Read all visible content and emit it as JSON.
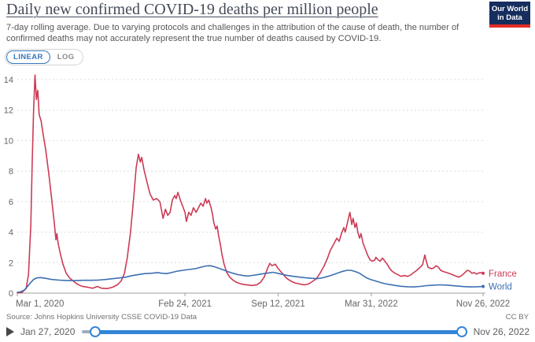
{
  "header": {
    "title": "Daily new confirmed COVID-19 deaths per million people",
    "subtitle": "7-day rolling average. Due to varying protocols and challenges in the attribution of the cause of death, the number of confirmed deaths may not accurately represent the true number of deaths caused by COVID-19.",
    "logo": {
      "line1": "Our World",
      "line2": "in Data"
    }
  },
  "controls": {
    "linear_label": "LINEAR",
    "log_label": "LOG",
    "selected": "LINEAR"
  },
  "chart_data": {
    "type": "line",
    "title": "Daily new confirmed COVID-19 deaths per million people",
    "xlabel": "",
    "ylabel": "",
    "ylim": [
      0,
      14
    ],
    "yticks": [
      0,
      2,
      4,
      6,
      8,
      10,
      12,
      14
    ],
    "grid": "dashed-horizontal",
    "legend_position": "right-of-line-ends",
    "x_range": [
      "Mar 1, 2020",
      "Nov 26, 2022"
    ],
    "x_ticks": [
      {
        "label": "Mar 1, 2020",
        "f": 0.0
      },
      {
        "label": "Feb 24, 2021",
        "f": 0.36
      },
      {
        "label": "Sep 12, 2021",
        "f": 0.56
      },
      {
        "label": "Mar 31, 2022",
        "f": 0.76
      },
      {
        "label": "Nov 26, 2022",
        "f": 1.0
      }
    ],
    "series": [
      {
        "name": "France",
        "color": "#cc3b55",
        "points": [
          [
            0.0,
            0.02
          ],
          [
            0.01,
            0.04
          ],
          [
            0.019,
            0.3
          ],
          [
            0.024,
            1.2
          ],
          [
            0.029,
            4.5
          ],
          [
            0.032,
            8.5
          ],
          [
            0.035,
            12.0
          ],
          [
            0.038,
            14.3
          ],
          [
            0.041,
            12.7
          ],
          [
            0.044,
            13.3
          ],
          [
            0.047,
            11.7
          ],
          [
            0.051,
            11.3
          ],
          [
            0.056,
            10.3
          ],
          [
            0.061,
            9.4
          ],
          [
            0.068,
            7.7
          ],
          [
            0.074,
            6.1
          ],
          [
            0.079,
            4.7
          ],
          [
            0.083,
            3.5
          ],
          [
            0.085,
            3.9
          ],
          [
            0.088,
            3.2
          ],
          [
            0.093,
            2.5
          ],
          [
            0.098,
            1.9
          ],
          [
            0.105,
            1.3
          ],
          [
            0.112,
            1.0
          ],
          [
            0.12,
            0.8
          ],
          [
            0.128,
            0.6
          ],
          [
            0.139,
            0.45
          ],
          [
            0.152,
            0.38
          ],
          [
            0.162,
            0.32
          ],
          [
            0.172,
            0.44
          ],
          [
            0.181,
            0.32
          ],
          [
            0.193,
            0.3
          ],
          [
            0.204,
            0.38
          ],
          [
            0.215,
            0.55
          ],
          [
            0.223,
            0.8
          ],
          [
            0.23,
            1.3
          ],
          [
            0.236,
            2.3
          ],
          [
            0.243,
            4.0
          ],
          [
            0.25,
            6.3
          ],
          [
            0.255,
            8.2
          ],
          [
            0.26,
            9.1
          ],
          [
            0.264,
            8.6
          ],
          [
            0.267,
            8.9
          ],
          [
            0.272,
            8.1
          ],
          [
            0.279,
            7.2
          ],
          [
            0.285,
            6.5
          ],
          [
            0.292,
            6.1
          ],
          [
            0.299,
            6.2
          ],
          [
            0.306,
            6.0
          ],
          [
            0.313,
            4.9
          ],
          [
            0.318,
            5.5
          ],
          [
            0.323,
            5.1
          ],
          [
            0.328,
            5.3
          ],
          [
            0.333,
            6.1
          ],
          [
            0.338,
            6.4
          ],
          [
            0.341,
            6.2
          ],
          [
            0.345,
            6.6
          ],
          [
            0.35,
            6.1
          ],
          [
            0.355,
            5.7
          ],
          [
            0.36,
            5.3
          ],
          [
            0.363,
            4.7
          ],
          [
            0.368,
            5.3
          ],
          [
            0.373,
            5.1
          ],
          [
            0.378,
            5.6
          ],
          [
            0.384,
            5.3
          ],
          [
            0.389,
            5.6
          ],
          [
            0.394,
            5.9
          ],
          [
            0.399,
            5.7
          ],
          [
            0.404,
            6.2
          ],
          [
            0.407,
            5.9
          ],
          [
            0.411,
            6.1
          ],
          [
            0.416,
            5.6
          ],
          [
            0.419,
            5.2
          ],
          [
            0.422,
            4.6
          ],
          [
            0.426,
            4.2
          ],
          [
            0.429,
            4.4
          ],
          [
            0.432,
            3.8
          ],
          [
            0.436,
            3.2
          ],
          [
            0.439,
            2.6
          ],
          [
            0.444,
            1.9
          ],
          [
            0.449,
            1.4
          ],
          [
            0.456,
            1.05
          ],
          [
            0.463,
            0.85
          ],
          [
            0.471,
            0.7
          ],
          [
            0.481,
            0.6
          ],
          [
            0.492,
            0.55
          ],
          [
            0.503,
            0.5
          ],
          [
            0.514,
            0.55
          ],
          [
            0.522,
            0.7
          ],
          [
            0.53,
            1.05
          ],
          [
            0.537,
            1.6
          ],
          [
            0.542,
            1.95
          ],
          [
            0.547,
            1.8
          ],
          [
            0.554,
            1.9
          ],
          [
            0.559,
            1.65
          ],
          [
            0.566,
            1.4
          ],
          [
            0.573,
            1.15
          ],
          [
            0.579,
            0.95
          ],
          [
            0.588,
            0.78
          ],
          [
            0.596,
            0.67
          ],
          [
            0.606,
            0.6
          ],
          [
            0.617,
            0.55
          ],
          [
            0.625,
            0.6
          ],
          [
            0.633,
            0.75
          ],
          [
            0.642,
            0.95
          ],
          [
            0.65,
            1.3
          ],
          [
            0.659,
            1.8
          ],
          [
            0.666,
            2.3
          ],
          [
            0.672,
            2.8
          ],
          [
            0.679,
            3.2
          ],
          [
            0.686,
            3.6
          ],
          [
            0.691,
            3.4
          ],
          [
            0.696,
            3.9
          ],
          [
            0.701,
            4.3
          ],
          [
            0.704,
            4.0
          ],
          [
            0.708,
            4.5
          ],
          [
            0.711,
            4.9
          ],
          [
            0.714,
            5.3
          ],
          [
            0.718,
            4.5
          ],
          [
            0.721,
            4.9
          ],
          [
            0.725,
            4.3
          ],
          [
            0.728,
            4.6
          ],
          [
            0.731,
            4.0
          ],
          [
            0.735,
            3.6
          ],
          [
            0.738,
            3.9
          ],
          [
            0.742,
            3.3
          ],
          [
            0.747,
            2.9
          ],
          [
            0.752,
            2.5
          ],
          [
            0.757,
            2.2
          ],
          [
            0.762,
            2.1
          ],
          [
            0.767,
            2.15
          ],
          [
            0.77,
            2.35
          ],
          [
            0.774,
            2.2
          ],
          [
            0.779,
            2.1
          ],
          [
            0.784,
            2.3
          ],
          [
            0.789,
            2.1
          ],
          [
            0.794,
            1.9
          ],
          [
            0.799,
            1.65
          ],
          [
            0.804,
            1.45
          ],
          [
            0.811,
            1.3
          ],
          [
            0.818,
            1.2
          ],
          [
            0.824,
            1.1
          ],
          [
            0.831,
            1.15
          ],
          [
            0.838,
            1.1
          ],
          [
            0.845,
            1.2
          ],
          [
            0.851,
            1.35
          ],
          [
            0.858,
            1.5
          ],
          [
            0.865,
            1.7
          ],
          [
            0.87,
            1.85
          ],
          [
            0.875,
            2.5
          ],
          [
            0.878,
            2.1
          ],
          [
            0.882,
            1.7
          ],
          [
            0.889,
            1.6
          ],
          [
            0.894,
            1.65
          ],
          [
            0.899,
            1.8
          ],
          [
            0.904,
            1.7
          ],
          [
            0.909,
            1.5
          ],
          [
            0.916,
            1.4
          ],
          [
            0.922,
            1.35
          ],
          [
            0.931,
            1.25
          ],
          [
            0.939,
            1.15
          ],
          [
            0.948,
            1.05
          ],
          [
            0.954,
            1.15
          ],
          [
            0.961,
            1.35
          ],
          [
            0.966,
            1.5
          ],
          [
            0.971,
            1.45
          ],
          [
            0.976,
            1.3
          ],
          [
            0.981,
            1.35
          ],
          [
            0.986,
            1.25
          ],
          [
            0.993,
            1.35
          ],
          [
            1.0,
            1.3
          ]
        ]
      },
      {
        "name": "World",
        "color": "#3d6fb3",
        "points": [
          [
            0.0,
            0.05
          ],
          [
            0.008,
            0.1
          ],
          [
            0.015,
            0.2
          ],
          [
            0.022,
            0.45
          ],
          [
            0.029,
            0.7
          ],
          [
            0.035,
            0.9
          ],
          [
            0.042,
            1.0
          ],
          [
            0.051,
            1.02
          ],
          [
            0.061,
            0.97
          ],
          [
            0.073,
            0.9
          ],
          [
            0.09,
            0.85
          ],
          [
            0.106,
            0.83
          ],
          [
            0.123,
            0.82
          ],
          [
            0.14,
            0.84
          ],
          [
            0.157,
            0.84
          ],
          [
            0.174,
            0.86
          ],
          [
            0.191,
            0.9
          ],
          [
            0.208,
            0.96
          ],
          [
            0.221,
            1.0
          ],
          [
            0.233,
            1.05
          ],
          [
            0.247,
            1.15
          ],
          [
            0.26,
            1.22
          ],
          [
            0.274,
            1.28
          ],
          [
            0.287,
            1.3
          ],
          [
            0.301,
            1.35
          ],
          [
            0.311,
            1.3
          ],
          [
            0.321,
            1.28
          ],
          [
            0.331,
            1.35
          ],
          [
            0.345,
            1.45
          ],
          [
            0.356,
            1.5
          ],
          [
            0.368,
            1.55
          ],
          [
            0.382,
            1.6
          ],
          [
            0.394,
            1.7
          ],
          [
            0.405,
            1.78
          ],
          [
            0.414,
            1.8
          ],
          [
            0.422,
            1.74
          ],
          [
            0.432,
            1.64
          ],
          [
            0.443,
            1.52
          ],
          [
            0.453,
            1.4
          ],
          [
            0.463,
            1.3
          ],
          [
            0.473,
            1.22
          ],
          [
            0.485,
            1.15
          ],
          [
            0.495,
            1.12
          ],
          [
            0.505,
            1.16
          ],
          [
            0.517,
            1.22
          ],
          [
            0.527,
            1.27
          ],
          [
            0.539,
            1.32
          ],
          [
            0.549,
            1.37
          ],
          [
            0.559,
            1.3
          ],
          [
            0.569,
            1.23
          ],
          [
            0.581,
            1.15
          ],
          [
            0.593,
            1.1
          ],
          [
            0.606,
            1.05
          ],
          [
            0.62,
            1.0
          ],
          [
            0.632,
            0.97
          ],
          [
            0.644,
            0.95
          ],
          [
            0.655,
            1.0
          ],
          [
            0.667,
            1.1
          ],
          [
            0.679,
            1.22
          ],
          [
            0.689,
            1.33
          ],
          [
            0.699,
            1.43
          ],
          [
            0.708,
            1.5
          ],
          [
            0.716,
            1.5
          ],
          [
            0.725,
            1.42
          ],
          [
            0.735,
            1.3
          ],
          [
            0.742,
            1.15
          ],
          [
            0.75,
            1.0
          ],
          [
            0.758,
            0.9
          ],
          [
            0.769,
            0.8
          ],
          [
            0.779,
            0.7
          ],
          [
            0.789,
            0.62
          ],
          [
            0.801,
            0.56
          ],
          [
            0.812,
            0.5
          ],
          [
            0.824,
            0.45
          ],
          [
            0.838,
            0.42
          ],
          [
            0.851,
            0.41
          ],
          [
            0.865,
            0.44
          ],
          [
            0.878,
            0.49
          ],
          [
            0.892,
            0.52
          ],
          [
            0.905,
            0.54
          ],
          [
            0.919,
            0.53
          ],
          [
            0.932,
            0.5
          ],
          [
            0.946,
            0.46
          ],
          [
            0.959,
            0.43
          ],
          [
            0.973,
            0.41
          ],
          [
            0.986,
            0.42
          ],
          [
            1.0,
            0.44
          ]
        ]
      }
    ]
  },
  "footer": {
    "source": "Source: Johns Hopkins University CSSE COVID-19 Data",
    "license": "CC BY"
  },
  "timeline": {
    "start_date": "Jan 27, 2020",
    "end_date": "Nov 26, 2022"
  }
}
